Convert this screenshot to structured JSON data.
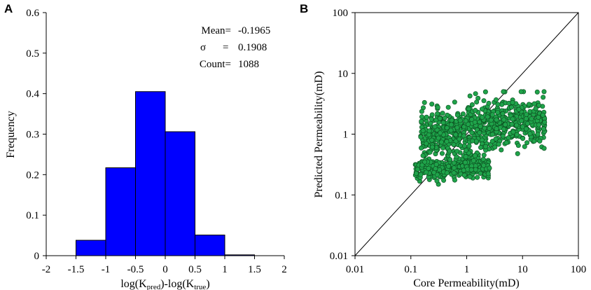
{
  "chart_data": [
    {
      "panel": "A",
      "type": "bar",
      "subtype": "histogram",
      "bins": [
        {
          "from": -1.5,
          "to": -1.0,
          "value": 0.038
        },
        {
          "from": -1.0,
          "to": -0.5,
          "value": 0.217
        },
        {
          "from": -0.5,
          "to": 0.0,
          "value": 0.405
        },
        {
          "from": 0.0,
          "to": 0.5,
          "value": 0.306
        },
        {
          "from": 0.5,
          "to": 1.0,
          "value": 0.051
        },
        {
          "from": 1.0,
          "to": 1.5,
          "value": 0.002
        }
      ],
      "xlim": [
        -2,
        2
      ],
      "ylim": [
        0,
        0.6
      ],
      "x_ticks": [
        "-2",
        "-1.5",
        "-1",
        "-0.5",
        "0",
        "0.5",
        "1",
        "1.5",
        "2"
      ],
      "y_ticks": [
        "0",
        "0.1",
        "0.2",
        "0.3",
        "0.4",
        "0.5",
        "0.6"
      ],
      "xlabel": {
        "pre": "log(K",
        "sub1": "pred",
        "mid": ")-log(K",
        "sub2": "true",
        "post": ")"
      },
      "ylabel": "Frequency",
      "bar_color": "#0000ff",
      "annotations": {
        "mean_label": "Mean=",
        "mean_value": "-0.1965",
        "sigma_label": "σ",
        "sigma_eq": "=",
        "sigma_value": "0.1908",
        "count_label": "Count=",
        "count_value": "1088"
      }
    },
    {
      "panel": "B",
      "type": "scatter",
      "scale": "log-log",
      "xlim": [
        0.01,
        100
      ],
      "ylim": [
        0.01,
        100
      ],
      "x_ticks": [
        "0.01",
        "0.1",
        "1",
        "10",
        "100"
      ],
      "y_ticks": [
        "0.01",
        "0.1",
        "1",
        "10",
        "100"
      ],
      "xlabel": "Core Permeability(mD)",
      "ylabel": "Predicted Permeability(mD)",
      "reference_line": "y = x",
      "marker_color": "#1fa34a",
      "marker_edge": "#0b4a1e",
      "clusters": [
        {
          "x_range": [
            0.12,
            2.5
          ],
          "y_center": 0.28,
          "y_spread": 0.12,
          "count": 360
        },
        {
          "x_range": [
            0.15,
            25
          ],
          "y_center": 1.3,
          "y_spread": 0.28,
          "count": 728
        }
      ],
      "total_points": 1088
    }
  ]
}
